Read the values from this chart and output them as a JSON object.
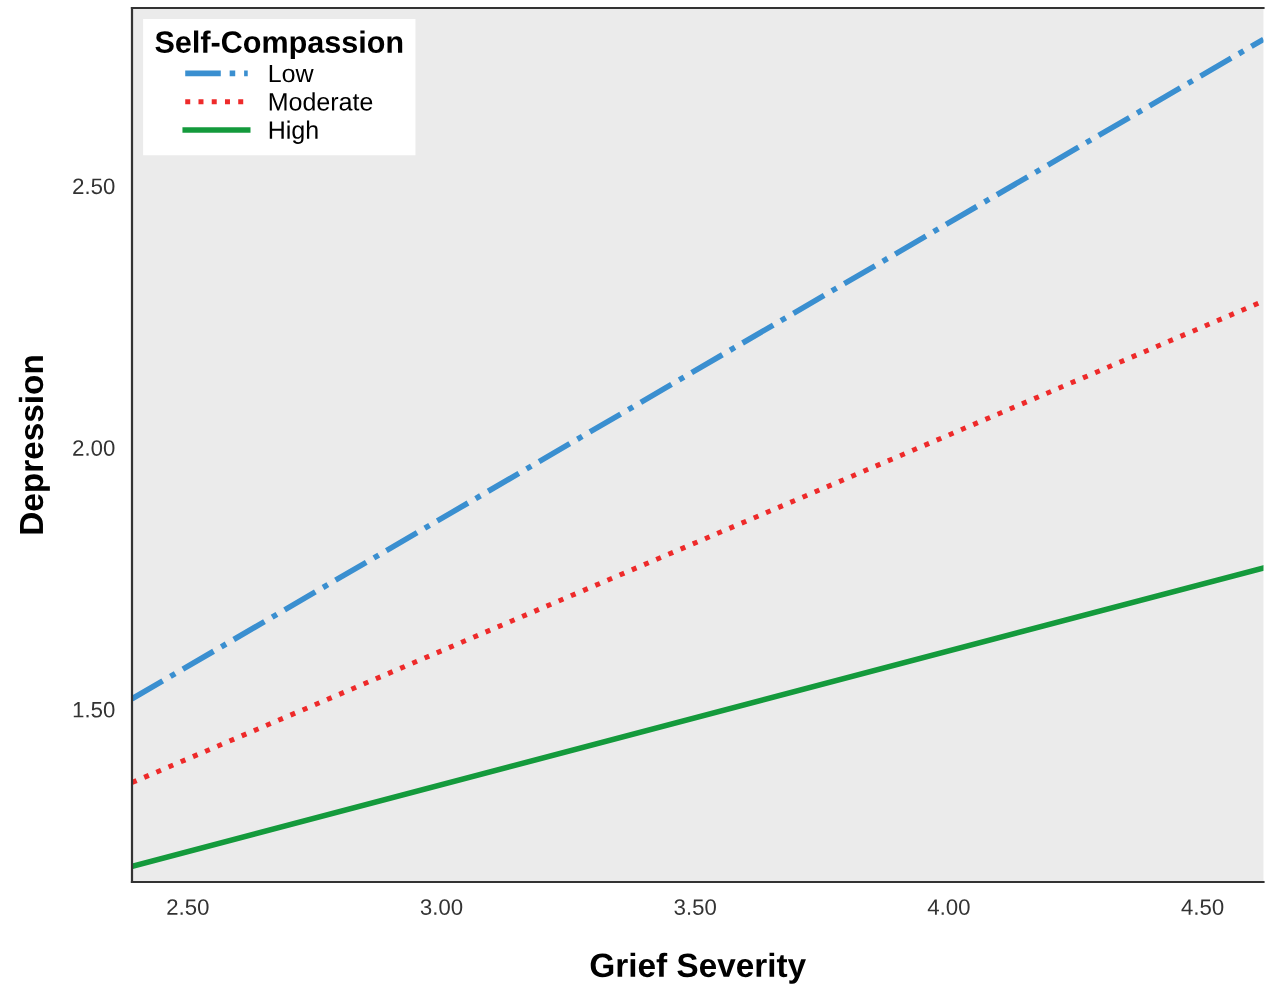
{
  "chart_data": {
    "type": "line",
    "xlabel": "Grief Severity",
    "ylabel": "Depression",
    "legend_title": "Self-Compassion",
    "x": [
      2.39,
      4.62
    ],
    "series": [
      {
        "name": "Low",
        "color": "#3a8fd0",
        "values": [
          1.52,
          2.78
        ],
        "line_style": "dashdot"
      },
      {
        "name": "Moderate",
        "color": "#ee2a2a",
        "values": [
          1.36,
          2.28
        ],
        "line_style": "dotted"
      },
      {
        "name": "High",
        "color": "#149a3c",
        "values": [
          1.2,
          1.77
        ],
        "line_style": "solid"
      }
    ],
    "xlim": [
      2.39,
      4.62
    ],
    "ylim": [
      1.17,
      2.84
    ],
    "xticks": [
      {
        "value": 2.5,
        "label": "2.50"
      },
      {
        "value": 3.0,
        "label": "3.00"
      },
      {
        "value": 3.5,
        "label": "3.50"
      },
      {
        "value": 4.0,
        "label": "4.00"
      },
      {
        "value": 4.5,
        "label": "4.50"
      }
    ],
    "yticks": [
      {
        "value": 1.5,
        "label": "1.50"
      },
      {
        "value": 2.0,
        "label": "2.00"
      },
      {
        "value": 2.5,
        "label": "2.50"
      }
    ],
    "grid": false,
    "legend": "top left",
    "marker": "none"
  }
}
